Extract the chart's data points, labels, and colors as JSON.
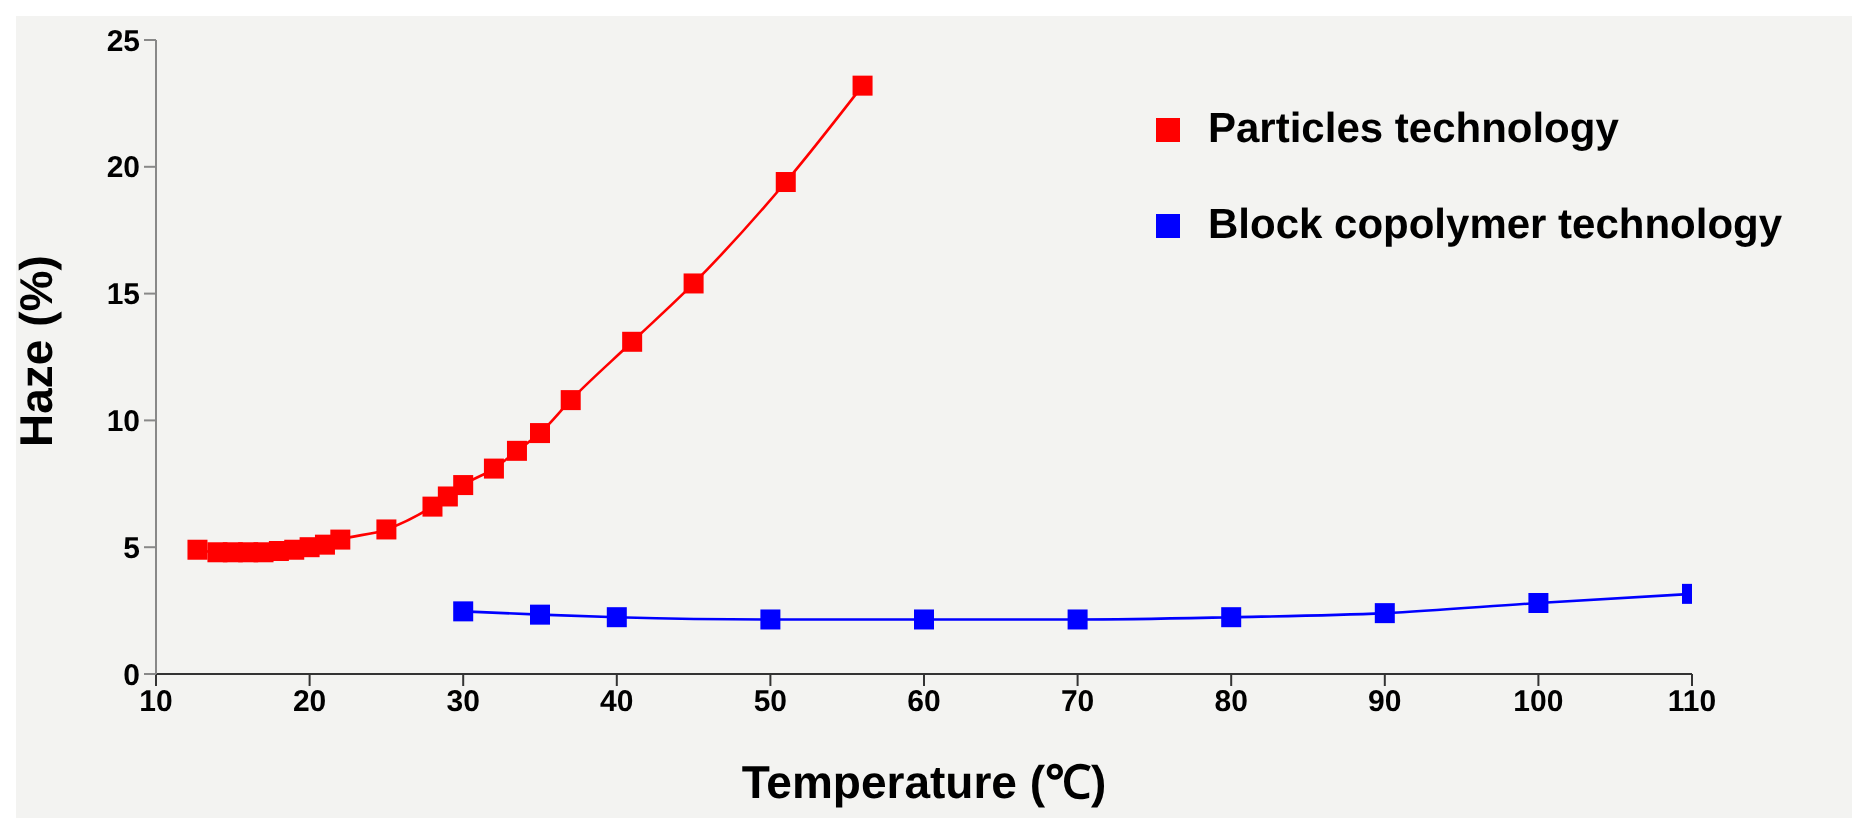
{
  "chart_data": {
    "type": "line",
    "xlabel": "Temperature (℃)",
    "ylabel": "Haze (%)",
    "xlim": [
      10,
      110
    ],
    "xticks": [
      10,
      20,
      30,
      40,
      50,
      60,
      70,
      80,
      90,
      100,
      110
    ],
    "ylim": [
      0,
      25
    ],
    "yticks": [
      0,
      5,
      10,
      15,
      20,
      25
    ],
    "grid": false,
    "legend": "top right",
    "marker": "square",
    "line_style": "solid",
    "series": [
      {
        "name": "Particles technology",
        "color": "#ff0000",
        "x": [
          12.7,
          14,
          15,
          16,
          17,
          18,
          19,
          20,
          21,
          22,
          25,
          28,
          29,
          30,
          32,
          33.5,
          35,
          37,
          41,
          45,
          51,
          56
        ],
        "values": [
          4.9,
          4.8,
          4.8,
          4.8,
          4.8,
          4.85,
          4.9,
          5.0,
          5.1,
          5.3,
          5.7,
          6.6,
          7.0,
          7.45,
          8.1,
          8.8,
          9.5,
          10.8,
          13.1,
          15.4,
          19.4,
          23.2
        ]
      },
      {
        "name": "Block copolymer technology",
        "color": "#0000ff",
        "x": [
          30,
          35,
          40,
          50,
          60,
          70,
          80,
          90,
          100,
          110
        ],
        "values": [
          2.47,
          2.34,
          2.24,
          2.15,
          2.15,
          2.15,
          2.24,
          2.4,
          2.8,
          3.16
        ]
      }
    ]
  }
}
